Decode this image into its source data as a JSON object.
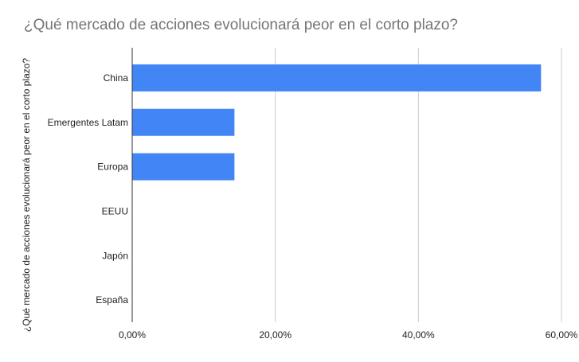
{
  "chart_data": {
    "type": "bar",
    "orientation": "horizontal",
    "title": "¿Qué mercado de acciones evolucionará peor en el corto plazo?",
    "xlabel": "",
    "ylabel": "¿Qué mercado de acciones evolucionará peor en el corto plazo?",
    "categories": [
      "China",
      "Emergentes Latam",
      "Europa",
      "EEUU",
      "Japón",
      "España"
    ],
    "values": [
      57.14,
      14.29,
      14.29,
      0,
      0,
      0
    ],
    "value_unit": "percent",
    "xlim": [
      0,
      60
    ],
    "x_ticks": [
      0,
      20,
      40,
      60
    ],
    "x_tick_labels": [
      "0,00%",
      "20,00%",
      "40,00%",
      "60,00%"
    ],
    "grid": true,
    "legend": "none",
    "colors": {
      "bar": "#4285f4",
      "grid": "#cccccc",
      "axis": "#333333",
      "title": "#757575",
      "text": "#222222"
    }
  }
}
